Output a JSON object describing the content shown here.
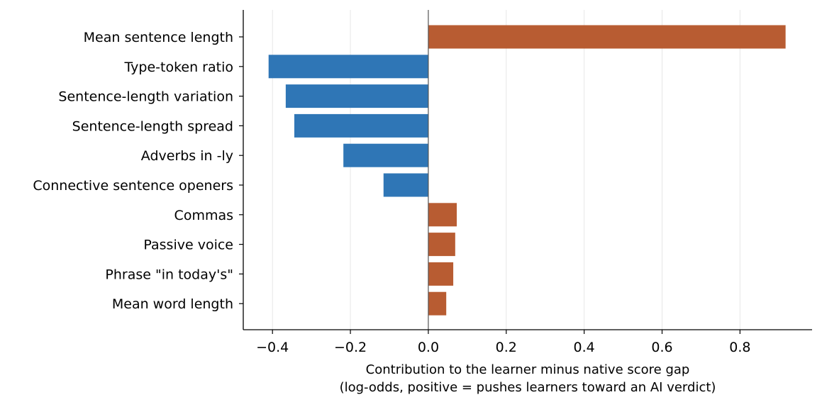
{
  "chart_data": {
    "type": "bar",
    "orientation": "horizontal",
    "categories": [
      "Mean sentence length",
      "Type-token ratio",
      "Sentence-length variation",
      "Sentence-length spread",
      "Adverbs in -ly",
      "Connective sentence openers",
      "Commas",
      "Passive voice",
      "Phrase \"in today's\"",
      "Mean word length"
    ],
    "values": [
      0.917,
      -0.41,
      -0.366,
      -0.344,
      -0.218,
      -0.115,
      0.073,
      0.069,
      0.064,
      0.046
    ],
    "xlabel": "Contribution to the learner minus native score gap",
    "xlabel_line2": "(log-odds, positive = pushes learners toward an AI verdict)",
    "xlim": [
      -0.475,
      0.985
    ],
    "xticks": [
      -0.4,
      -0.2,
      0.0,
      0.2,
      0.4,
      0.6,
      0.8
    ],
    "xtick_labels": [
      "−0.4",
      "−0.2",
      "0.0",
      "0.2",
      "0.4",
      "0.6",
      "0.8"
    ],
    "grid": "x-major",
    "colors": {
      "positive": "#b85c32",
      "negative": "#2f76b6",
      "zero_line": "#555555",
      "grid": "#e6e6e6"
    }
  }
}
